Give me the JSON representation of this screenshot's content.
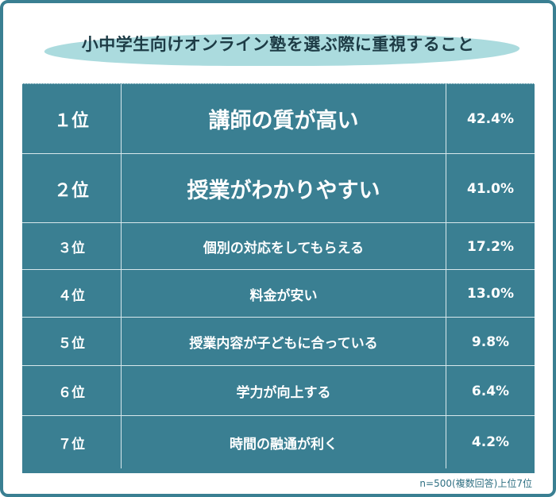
{
  "title": "小中学生向けオンライン塾を選ぶ際に重視すること",
  "note": "n=500(複数回答)上位7位",
  "chart_data": {
    "type": "table",
    "title": "小中学生向けオンライン塾を選ぶ際に重視すること",
    "rows": [
      {
        "rank": "１位",
        "item": "講師の質が高い",
        "value": 42.4,
        "label": "42.4%"
      },
      {
        "rank": "２位",
        "item": "授業がわかりやすい",
        "value": 41.0,
        "label": "41.0%"
      },
      {
        "rank": "３位",
        "item": "個別の対応をしてもらえる",
        "value": 17.2,
        "label": "17.2%"
      },
      {
        "rank": "４位",
        "item": "料金が安い",
        "value": 13.0,
        "label": "13.0%"
      },
      {
        "rank": "５位",
        "item": "授業内容が子どもに合っている",
        "value": 9.8,
        "label": "9.8%"
      },
      {
        "rank": "６位",
        "item": "学力が向上する",
        "value": 6.4,
        "label": "6.4%"
      },
      {
        "rank": "７位",
        "item": "時間の融通が利く",
        "value": 4.2,
        "label": "4.2%"
      }
    ]
  },
  "colors": {
    "table_bg": "#3a7f92",
    "frame": "#3a7f92",
    "title_highlight": "#a7d9dc",
    "text_light": "#ffffff",
    "title_text": "#1d3b45"
  }
}
